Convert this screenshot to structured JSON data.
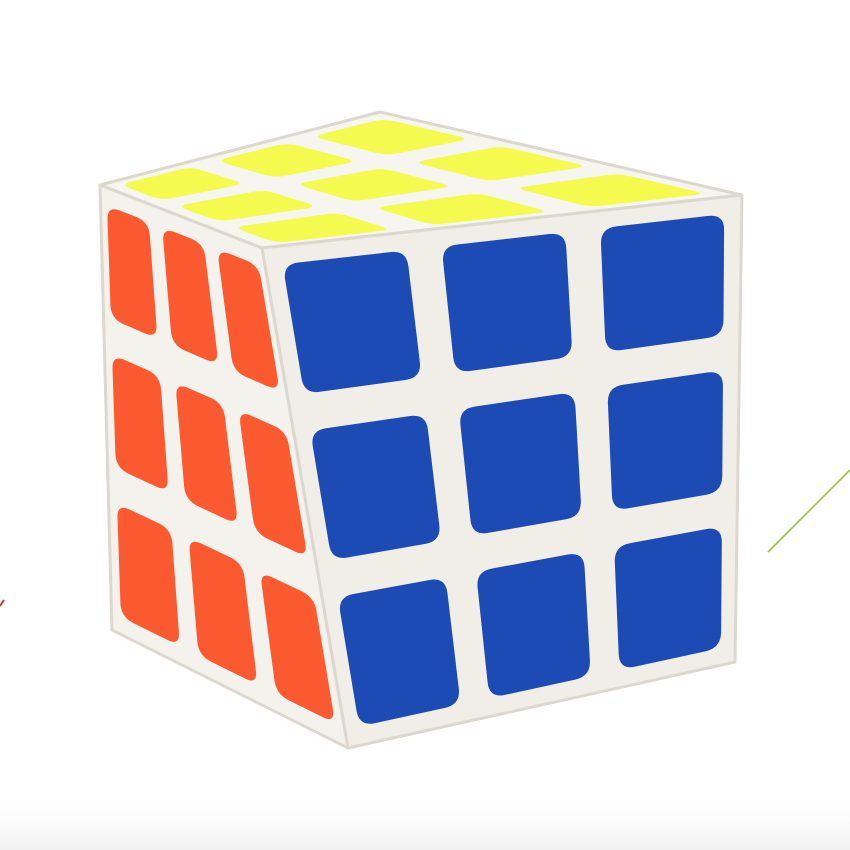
{
  "image": {
    "subject": "rubiks-cube",
    "background_color": "#ffffff",
    "cube_body_color": "#f4f2ec"
  },
  "cube": {
    "size": "3x3",
    "faces": {
      "top": {
        "color_name": "yellow",
        "color": "#f4fb4e",
        "stickers": [
          [
            "yellow",
            "yellow",
            "yellow"
          ],
          [
            "yellow",
            "yellow",
            "yellow"
          ],
          [
            "yellow",
            "yellow",
            "yellow"
          ]
        ]
      },
      "left": {
        "color_name": "orange",
        "color": "#fb5a31",
        "stickers": [
          [
            "orange",
            "orange",
            "orange"
          ],
          [
            "orange",
            "orange",
            "orange"
          ],
          [
            "orange",
            "orange",
            "orange"
          ]
        ]
      },
      "right": {
        "color_name": "blue",
        "color": "#1d4bb5",
        "stickers": [
          [
            "blue",
            "blue",
            "blue"
          ],
          [
            "blue",
            "blue",
            "blue"
          ],
          [
            "blue",
            "blue",
            "blue"
          ]
        ]
      }
    }
  },
  "decorations": {
    "green_line_color": "#9cc23c",
    "red_mark_color": "#d0302a"
  }
}
